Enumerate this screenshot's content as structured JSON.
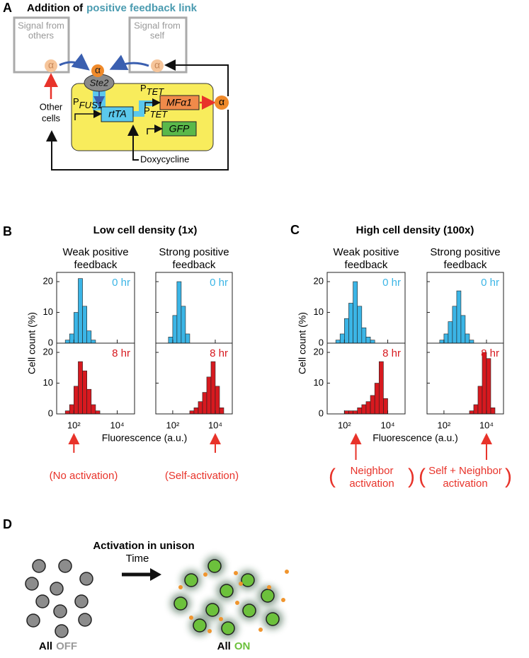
{
  "panel_a": {
    "letter": "A",
    "title_prefix": "Addition of",
    "title_highlight": "positive feedback link",
    "signal_others": [
      "Signal from",
      "others"
    ],
    "signal_self": [
      "Signal from",
      "self"
    ],
    "alpha": "α",
    "ste2": "Ste2",
    "promoter": "P",
    "fus1": "FUS1",
    "tet": "TET",
    "rtta": "rtTA",
    "mfa1": "MFα1",
    "gfp": "GFP",
    "other_cells": [
      "Other",
      "cells"
    ],
    "doxycycline": "Doxycycline"
  },
  "panel_b": {
    "letter": "B",
    "title": "Low cell density (1x)",
    "columns": [
      {
        "title": [
          "Weak positive",
          "feedback"
        ],
        "annotation": [
          "(No activation)"
        ]
      },
      {
        "title": [
          "Strong positive",
          "feedback"
        ],
        "annotation": [
          "(Self-activation)"
        ]
      }
    ]
  },
  "panel_c": {
    "letter": "C",
    "title": "High cell density (100x)",
    "brackets": [
      "(",
      ")"
    ],
    "columns": [
      {
        "title": [
          "Weak positive",
          "feedback"
        ],
        "annotation": [
          "Neighbor",
          "activation"
        ]
      },
      {
        "title": [
          "Strong positive",
          "feedback"
        ],
        "annotation": [
          "Self + Neighbor",
          "activation"
        ]
      }
    ]
  },
  "histograms": {
    "xlabel": "Fluorescence (a.u.)",
    "ylabel": "Cell count (%)",
    "log_x": true,
    "bins": [
      16,
      25,
      40,
      63,
      100,
      158,
      251,
      398,
      631,
      1000,
      1585,
      2512,
      3981,
      6310,
      10000,
      15849,
      25119,
      39811,
      63096
    ],
    "xlim": [
      16,
      63096
    ],
    "xticks": [
      {
        "value": 100,
        "label": "10²"
      },
      {
        "value": 10000,
        "label": "10⁴"
      }
    ],
    "ylim": [
      0,
      23
    ],
    "yticks": [
      0,
      10,
      20
    ],
    "plots": [
      {
        "time": "0 hr",
        "color": "#3bb5e6",
        "counts": [
          0,
          0,
          1,
          3,
          10,
          21,
          12,
          4,
          1,
          0,
          0,
          0,
          0,
          0,
          0,
          0,
          0,
          0
        ]
      },
      {
        "time": "8 hr",
        "color": "#d7191f",
        "counts": [
          0,
          0,
          1,
          3,
          9,
          17,
          14,
          8,
          3,
          1,
          0,
          0,
          0,
          0,
          0,
          0,
          0,
          0
        ]
      },
      {
        "time": "0 hr",
        "color": "#3bb5e6",
        "counts": [
          0,
          0,
          0,
          2,
          9,
          20,
          12,
          3,
          0,
          0,
          0,
          0,
          0,
          0,
          0,
          0,
          0,
          0
        ]
      },
      {
        "time": "8 hr",
        "color": "#d7191f",
        "counts": [
          0,
          0,
          0,
          0,
          0,
          0,
          0,
          0,
          1,
          2,
          4,
          7,
          12,
          17,
          9,
          2,
          0,
          0
        ]
      },
      {
        "time": "0 hr",
        "color": "#3bb5e6",
        "counts": [
          0,
          0,
          1,
          3,
          8,
          13,
          20,
          12,
          5,
          2,
          1,
          0,
          0,
          0,
          0,
          0,
          0,
          0
        ]
      },
      {
        "time": "8 hr",
        "color": "#d7191f",
        "counts": [
          0,
          0,
          0,
          0,
          1,
          1,
          1,
          2,
          3,
          4,
          6,
          10,
          17,
          5,
          0,
          0,
          0,
          0
        ]
      },
      {
        "time": "0 hr",
        "color": "#3bb5e6",
        "counts": [
          0,
          0,
          0,
          1,
          3,
          7,
          12,
          17,
          9,
          3,
          1,
          0,
          0,
          0,
          0,
          0,
          0,
          0
        ]
      },
      {
        "time": "8 hr",
        "color": "#d7191f",
        "counts": [
          0,
          0,
          0,
          0,
          0,
          0,
          0,
          0,
          0,
          0,
          1,
          3,
          9,
          20,
          18,
          2,
          0,
          0
        ]
      }
    ]
  },
  "panel_d": {
    "letter": "D",
    "title": "Activation in unison",
    "time": "Time",
    "off_prefix": "All",
    "off_word": "OFF",
    "on_prefix": "All",
    "on_word": "ON"
  }
}
